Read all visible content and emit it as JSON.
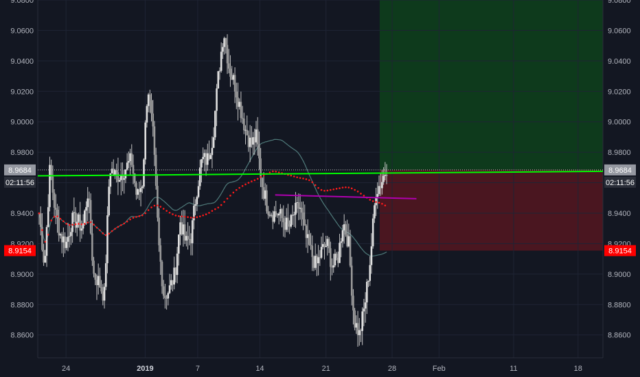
{
  "chart_data": {
    "type": "candlestick",
    "y_range": [
      8.845,
      9.08
    ],
    "y_ticks": [
      "9.0800",
      "9.0600",
      "9.0400",
      "9.0200",
      "9.0000",
      "8.9800",
      "8.9600",
      "8.9400",
      "8.9200",
      "8.9000",
      "8.8800",
      "8.8600"
    ],
    "x_ticks": [
      {
        "label": "24",
        "pos": 0.05
      },
      {
        "label": "2019",
        "pos": 0.19,
        "bold": true
      },
      {
        "label": "7",
        "pos": 0.283
      },
      {
        "label": "14",
        "pos": 0.393
      },
      {
        "label": "21",
        "pos": 0.51
      },
      {
        "label": "28",
        "pos": 0.627
      },
      {
        "label": "Feb",
        "pos": 0.71
      },
      {
        "label": "11",
        "pos": 0.842
      },
      {
        "label": "18",
        "pos": 0.956
      }
    ],
    "price_tag": {
      "value": "8.9684",
      "time": "02:11:56",
      "color": "#9598a1"
    },
    "stop_tag": {
      "value": "8.9154",
      "color": "#ff0000"
    },
    "entry_price": 8.9684,
    "target_price": 9.08,
    "stop_price": 8.9154,
    "colors": {
      "background": "#131722",
      "grid": "#1f2434",
      "candle": "#c7c7c7",
      "sma_fast": "#00ff00",
      "sma_slow": "#4f7a7a",
      "sma_red": "#ff1a1a",
      "purple": "#b000b0",
      "profit_zone": "#0e3a1c",
      "loss_zone": "#4a1620"
    },
    "key_closes": [
      8.94,
      8.905,
      8.97,
      8.94,
      8.925,
      8.92,
      8.935,
      8.935,
      8.93,
      8.955,
      8.9,
      8.895,
      8.885,
      8.97,
      8.965,
      8.965,
      8.97,
      8.975,
      8.95,
      8.96,
      9.025,
      8.99,
      8.92,
      8.885,
      8.89,
      8.9,
      8.935,
      8.92,
      8.925,
      8.955,
      8.975,
      8.975,
      8.99,
      9.03,
      9.06,
      9.035,
      9.025,
      9.01,
      8.995,
      8.985,
      8.99,
      8.96,
      8.945,
      8.94,
      8.94,
      8.935,
      8.93,
      8.94,
      8.945,
      8.925,
      8.915,
      8.905,
      8.915,
      8.92,
      8.905,
      8.91,
      8.935,
      8.92,
      8.87,
      8.86,
      8.88,
      8.91,
      8.955,
      8.96,
      8.97
    ]
  }
}
